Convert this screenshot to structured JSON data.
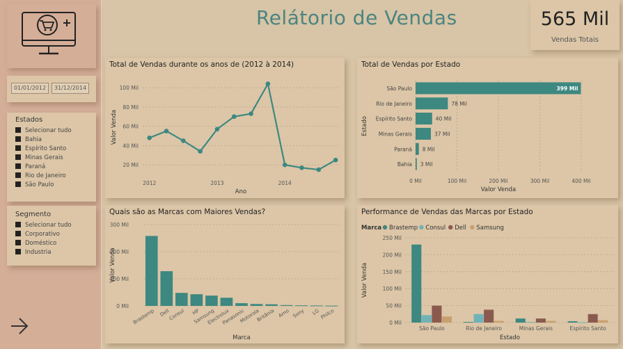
{
  "header": {
    "title": "Relátorio de Vendas"
  },
  "kpi": {
    "value": "565 Mil",
    "label": "Vendas Totais"
  },
  "dates": {
    "start": "01/01/2012",
    "end": "31/12/2014"
  },
  "estados_slicer": {
    "title": "Estados",
    "items": [
      "Selecionar tudo",
      "Bahia",
      "Espírito Santo",
      "Minas Gerais",
      "Paraná",
      "Rio de Janeiro",
      "São Paulo"
    ]
  },
  "segmento_slicer": {
    "title": "Segmento",
    "items": [
      "Selecionar tudo",
      "Corporativo",
      "Doméstico",
      "Industria"
    ]
  },
  "colors": {
    "primary": "#3d8880",
    "consul": "#6fb3b8",
    "dell": "#8b5a4e",
    "samsung": "#c8a070",
    "title": "#4a8580"
  },
  "icons": {
    "logo": "computer-cart-icon",
    "nav": "arrow-right-icon"
  },
  "chart_data": [
    {
      "id": "line",
      "type": "line",
      "title": "Total de Vendas durante os anos de (2012 à 2014)",
      "xlabel": "Ano",
      "ylabel": "Valor Venda",
      "x": [
        2012.0,
        2012.25,
        2012.5,
        2012.75,
        2013.0,
        2013.25,
        2013.5,
        2013.75,
        2014.0,
        2014.25,
        2014.5,
        2014.75
      ],
      "values": [
        48,
        55,
        45,
        34,
        57,
        70,
        73,
        104,
        20,
        17,
        15,
        25
      ],
      "xlim": [
        2011.9,
        2014.8
      ],
      "ylim": [
        10,
        108
      ],
      "yticks": [
        20,
        40,
        60,
        80,
        100
      ],
      "ytick_labels": [
        "20 Mil",
        "40 Mil",
        "60 Mil",
        "80 Mil",
        "100 Mil"
      ],
      "xticks": [
        2012,
        2013,
        2014
      ],
      "xtick_labels": [
        "2012",
        "2013",
        "2014"
      ],
      "grid": true
    },
    {
      "id": "hbar",
      "type": "bar",
      "orientation": "horizontal",
      "title": "Total de Vendas por Estado",
      "xlabel": "Valor Venda",
      "ylabel": "Estado",
      "categories": [
        "São Paulo",
        "Rio de Janeiro",
        "Espírito Santo",
        "Minas Gerais",
        "Paraná",
        "Bahia"
      ],
      "values": [
        399,
        78,
        40,
        37,
        8,
        3
      ],
      "value_labels": [
        "399 Mil",
        "78 Mil",
        "40 Mil",
        "37 Mil",
        "8 Mil",
        "3 Mil"
      ],
      "xlim": [
        0,
        400
      ],
      "xticks": [
        0,
        100,
        200,
        300,
        400
      ],
      "xtick_labels": [
        "0 Mil",
        "100 Mil",
        "200 Mil",
        "300 Mil",
        "400 Mil"
      ],
      "grid": true
    },
    {
      "id": "brands",
      "type": "bar",
      "title": "Quais são as Marcas com Maiores Vendas?",
      "xlabel": "Marca",
      "ylabel": "Valor Venda",
      "categories": [
        "Brastemp",
        "Dell",
        "Consul",
        "HP",
        "Samsung",
        "Electrolux",
        "Panasonic",
        "Motorola",
        "Britânia",
        "Arno",
        "Sony",
        "LG",
        "Philco"
      ],
      "values": [
        258,
        128,
        48,
        43,
        38,
        30,
        10,
        7,
        6,
        3,
        2,
        1.5,
        1
      ],
      "ylim": [
        0,
        300
      ],
      "yticks": [
        0,
        100,
        200,
        300
      ],
      "ytick_labels": [
        "0 Mil",
        "100 Mil",
        "200 Mil",
        "300 Mil"
      ],
      "grid": true
    },
    {
      "id": "grouped",
      "type": "bar",
      "title": "Performance de Vendas das Marcas por Estado",
      "xlabel": "Estado",
      "ylabel": "Valor Venda",
      "legend_title": "Marca",
      "legend_position": "top-left",
      "categories": [
        "São Paulo",
        "Rio de Janeiro",
        "Minas Gerais",
        "Espírito Santo"
      ],
      "series": [
        {
          "name": "Brastemp",
          "color": "#3d8880",
          "values": [
            230,
            2,
            12,
            4
          ]
        },
        {
          "name": "Consul",
          "color": "#6fb3b8",
          "values": [
            22,
            25,
            2,
            1
          ]
        },
        {
          "name": "Dell",
          "color": "#8b5a4e",
          "values": [
            50,
            38,
            12,
            25
          ]
        },
        {
          "name": "Samsung",
          "color": "#c8a070",
          "values": [
            18,
            5,
            5,
            7
          ]
        }
      ],
      "ylim": [
        0,
        250
      ],
      "yticks": [
        0,
        50,
        100,
        150,
        200,
        250
      ],
      "ytick_labels": [
        "0 Mil",
        "50 Mil",
        "100 Mil",
        "150 Mil",
        "200 Mil",
        "250 Mil"
      ],
      "grid": true
    }
  ]
}
